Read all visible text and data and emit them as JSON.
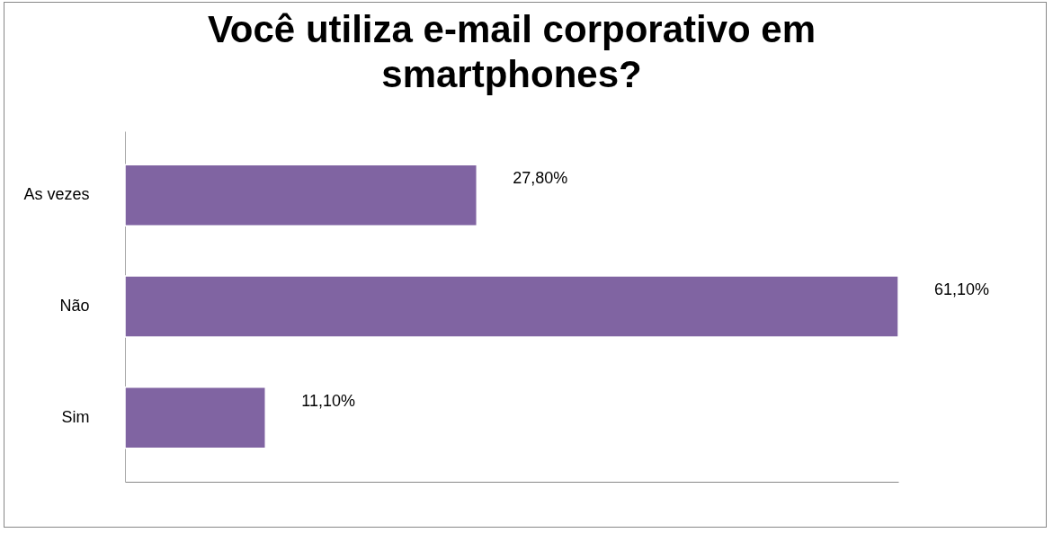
{
  "chart_data": {
    "type": "bar",
    "title": "Você utiliza e-mail corporativo em smartphones?",
    "orientation": "horizontal",
    "categories": [
      "As vezes",
      "Não",
      "Sim"
    ],
    "values": [
      27.8,
      61.1,
      11.1
    ],
    "value_labels": [
      "27,80%",
      "61,10%",
      "11,10%"
    ],
    "color": "#8064a2",
    "tick_labels": "y",
    "grid": false
  }
}
